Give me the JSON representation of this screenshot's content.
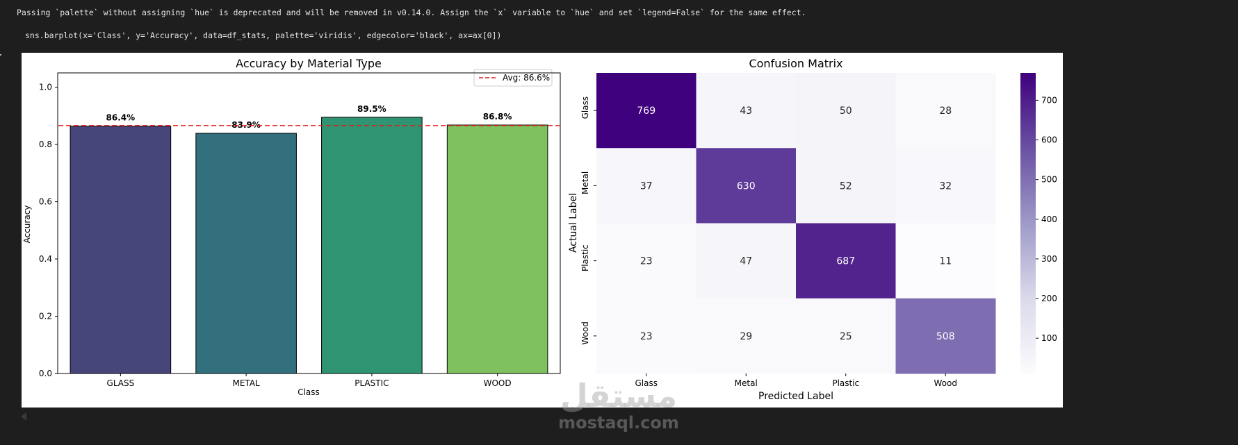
{
  "warning_text": "Passing `palette` without assigning `hue` is deprecated and will be removed in v0.14.0. Assign the `x` variable to `hue` and set `legend=False` for the same effect.",
  "code_line": "sns.barplot(x='Class', y='Accuracy', data=df_stats, palette='viridis', edgecolor='black', ax=ax[0])",
  "watermark": {
    "arabic": "مستقل",
    "latin": "mostaql.com"
  },
  "chart_data": [
    {
      "type": "bar",
      "title": "Accuracy by Material Type",
      "xlabel": "Class",
      "ylabel": "Accuracy",
      "categories": [
        "GLASS",
        "METAL",
        "PLASTIC",
        "WOOD"
      ],
      "values": [
        0.864,
        0.839,
        0.895,
        0.868
      ],
      "value_labels": [
        "86.4%",
        "83.9%",
        "89.5%",
        "86.8%"
      ],
      "colors": [
        "#46467a",
        "#33707e",
        "#2e9472",
        "#7fc15e"
      ],
      "ylim": [
        0,
        1.05
      ],
      "yticks": [
        0.0,
        0.2,
        0.4,
        0.6,
        0.8,
        1.0
      ],
      "ytick_labels": [
        "0.0",
        "0.2",
        "0.4",
        "0.6",
        "0.8",
        "1.0"
      ],
      "avg_line": {
        "value": 0.866,
        "label": "Avg: 86.6%",
        "color": "#e31a1c"
      },
      "legend": "top-right"
    },
    {
      "type": "heatmap",
      "title": "Confusion Matrix",
      "xlabel": "Predicted Label",
      "ylabel": "Actual Label",
      "x_categories": [
        "Glass",
        "Metal",
        "Plastic",
        "Wood"
      ],
      "y_categories": [
        "Glass",
        "Metal",
        "Plastic",
        "Wood"
      ],
      "values": [
        [
          769,
          43,
          50,
          28
        ],
        [
          37,
          630,
          52,
          32
        ],
        [
          23,
          47,
          687,
          11
        ],
        [
          23,
          29,
          25,
          508
        ]
      ],
      "colormap": "Purples",
      "colorbar_range": [
        11,
        769
      ],
      "colorbar_ticks": [
        100,
        200,
        300,
        400,
        500,
        600,
        700
      ],
      "colorbar_tick_labels": [
        "100",
        "200",
        "300",
        "400",
        "500",
        "600",
        "700"
      ]
    }
  ]
}
